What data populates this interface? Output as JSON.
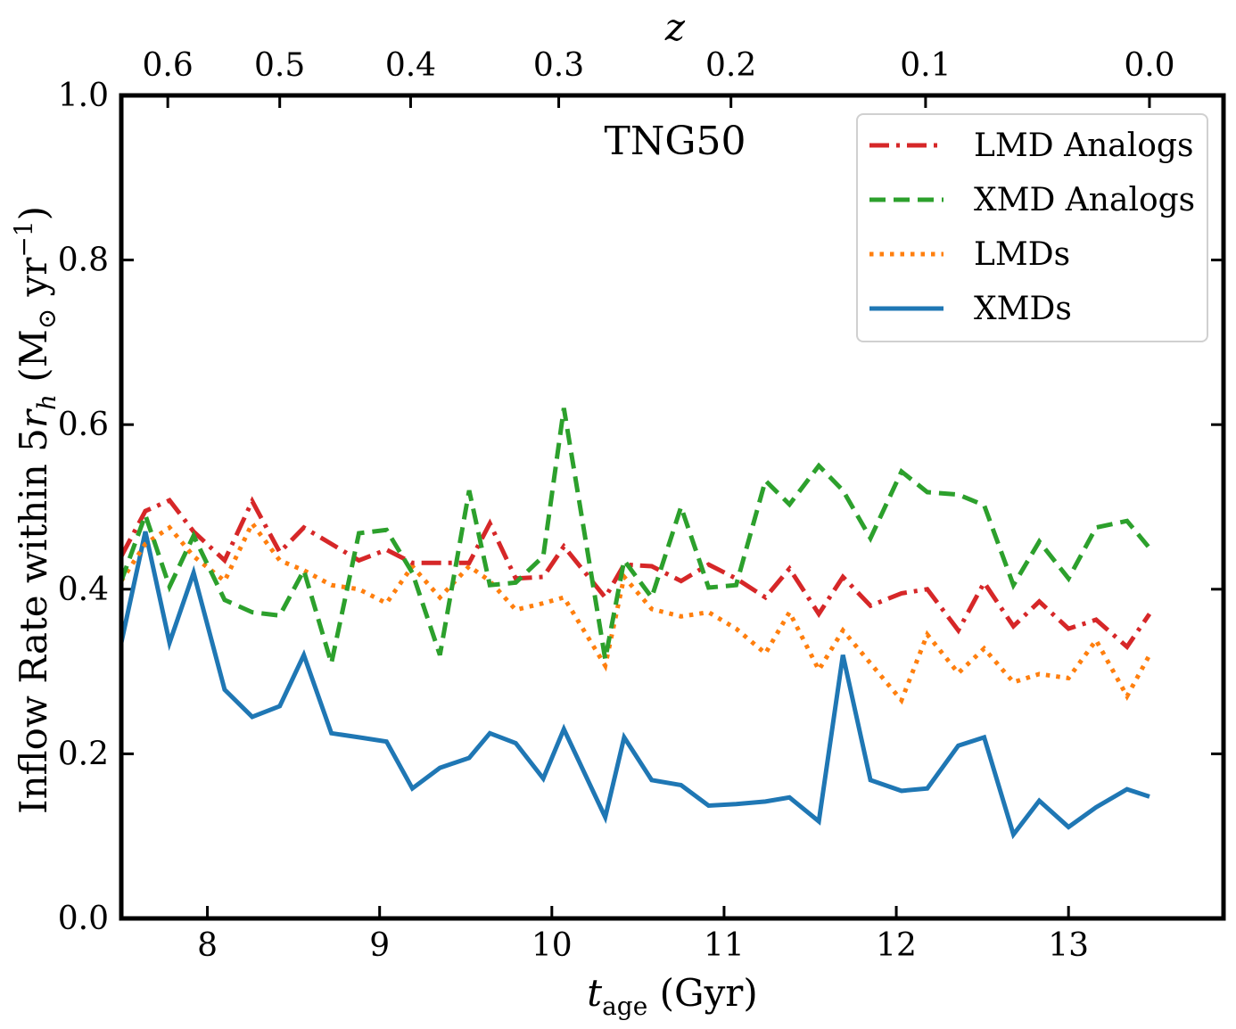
{
  "chart_data": {
    "type": "line",
    "annotation": "TNG50",
    "xlabel": {
      "var": "t",
      "sub": "age",
      "unit": " (Gyr)"
    },
    "ylabel": {
      "pre": "Inflow Rate within 5",
      "r": "r",
      "rsub": "h",
      "unit_open": " (M",
      "sun": "⊙",
      "unit_mid": " yr",
      "sup": "−1",
      "unit_close": ")"
    },
    "top_xlabel": "z",
    "xlim": [
      7.5,
      13.9
    ],
    "ylim": [
      0.0,
      1.0
    ],
    "xticks": [
      8,
      9,
      10,
      11,
      12,
      13
    ],
    "xtick_labels": [
      "8",
      "9",
      "10",
      "11",
      "12",
      "13"
    ],
    "yticks": [
      0.0,
      0.2,
      0.4,
      0.6,
      0.8,
      1.0
    ],
    "ytick_labels": [
      "0.0",
      "0.2",
      "0.4",
      "0.6",
      "0.8",
      "1.0"
    ],
    "top_ticks": [
      {
        "label": "0.6",
        "t": 7.77
      },
      {
        "label": "0.5",
        "t": 8.42
      },
      {
        "label": "0.4",
        "t": 9.18
      },
      {
        "label": "0.3",
        "t": 10.04
      },
      {
        "label": "0.2",
        "t": 11.04
      },
      {
        "label": "0.1",
        "t": 12.17
      },
      {
        "label": "0.0",
        "t": 13.47
      }
    ],
    "legend_position": "top-right",
    "x": [
      7.5,
      7.64,
      7.78,
      7.92,
      8.1,
      8.26,
      8.42,
      8.56,
      8.72,
      8.88,
      9.04,
      9.19,
      9.35,
      9.52,
      9.64,
      9.79,
      9.95,
      10.07,
      10.31,
      10.42,
      10.58,
      10.75,
      10.91,
      11.07,
      11.24,
      11.38,
      11.55,
      11.69,
      11.85,
      12.03,
      12.18,
      12.36,
      12.51,
      12.68,
      12.83,
      13.0,
      13.16,
      13.34,
      13.47
    ],
    "series": [
      {
        "name": "LMD Analogs",
        "color": "#d62728",
        "dash": "dashdot",
        "values": [
          0.44,
          0.495,
          0.508,
          0.47,
          0.435,
          0.507,
          0.445,
          0.475,
          0.455,
          0.435,
          0.448,
          0.432,
          0.432,
          0.432,
          0.48,
          0.413,
          0.415,
          0.452,
          0.39,
          0.43,
          0.428,
          0.41,
          0.43,
          0.413,
          0.39,
          0.425,
          0.37,
          0.415,
          0.38,
          0.395,
          0.4,
          0.35,
          0.408,
          0.355,
          0.385,
          0.352,
          0.363,
          0.33,
          0.37
        ]
      },
      {
        "name": "XMD Analogs",
        "color": "#2ca02c",
        "dash": "dashed",
        "values": [
          0.41,
          0.49,
          0.403,
          0.465,
          0.387,
          0.372,
          0.368,
          0.423,
          0.31,
          0.468,
          0.472,
          0.42,
          0.32,
          0.52,
          0.405,
          0.408,
          0.44,
          0.62,
          0.315,
          0.435,
          0.39,
          0.5,
          0.402,
          0.405,
          0.532,
          0.503,
          0.55,
          0.52,
          0.462,
          0.543,
          0.518,
          0.515,
          0.502,
          0.405,
          0.458,
          0.413,
          0.475,
          0.483,
          0.45
        ]
      },
      {
        "name": "LMDs",
        "color": "#ff7f0e",
        "dash": "dotted",
        "values": [
          0.41,
          0.455,
          0.475,
          0.44,
          0.41,
          0.48,
          0.435,
          0.423,
          0.405,
          0.4,
          0.383,
          0.428,
          0.39,
          0.428,
          0.41,
          0.375,
          0.383,
          0.39,
          0.307,
          0.415,
          0.376,
          0.367,
          0.372,
          0.352,
          0.322,
          0.372,
          0.302,
          0.35,
          0.31,
          0.265,
          0.345,
          0.298,
          0.328,
          0.287,
          0.297,
          0.292,
          0.338,
          0.27,
          0.32
        ]
      },
      {
        "name": "XMDs",
        "color": "#1f77b4",
        "dash": "solid",
        "values": [
          0.335,
          0.47,
          0.335,
          0.42,
          0.278,
          0.245,
          0.258,
          0.32,
          0.225,
          0.22,
          0.215,
          0.158,
          0.183,
          0.195,
          0.225,
          0.213,
          0.17,
          0.23,
          0.123,
          0.22,
          0.168,
          0.162,
          0.137,
          0.139,
          0.142,
          0.147,
          0.118,
          0.32,
          0.168,
          0.155,
          0.158,
          0.21,
          0.22,
          0.102,
          0.143,
          0.111,
          0.135,
          0.157,
          0.148
        ]
      }
    ]
  }
}
